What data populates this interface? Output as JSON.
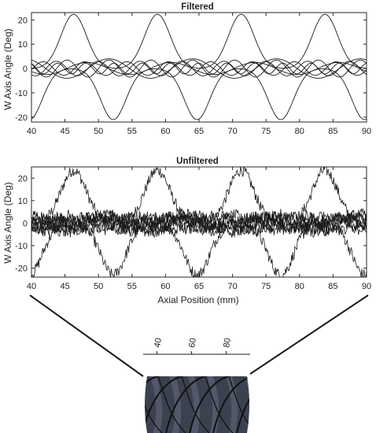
{
  "figure": {
    "colors": {
      "line": "#1a1a1a",
      "axis": "#262626",
      "tube": "#3c4150",
      "tube_stripe": "#5b6274",
      "helix": "#111111"
    },
    "scale": {
      "labels": [
        "40",
        "60",
        "80"
      ]
    }
  },
  "chart_data": [
    {
      "type": "line",
      "title": "Filtered",
      "xlabel": "",
      "ylabel": "W Axis Angle (Deg)",
      "xlim": [
        40,
        90
      ],
      "ylim": [
        -22,
        23
      ],
      "xticks": [
        40,
        45,
        50,
        55,
        60,
        65,
        70,
        75,
        80,
        85,
        90
      ],
      "yticks": [
        -20,
        -10,
        0,
        10,
        20
      ],
      "grid": false,
      "series_count": 8,
      "series": [
        {
          "pattern": "positive-peaks",
          "period": 12.5,
          "phase": 46.3,
          "amplitude": 22.3,
          "width": 1.9
        },
        {
          "pattern": "negative-valleys",
          "period": 12.5,
          "phase": 52.2,
          "amplitude": -21,
          "width": 1.9
        },
        {
          "pattern": "wave",
          "amplitude": 3.5,
          "period": 6.25,
          "phase": 0.0
        },
        {
          "pattern": "wave",
          "amplitude": 3.0,
          "period": 6.25,
          "phase": 1.6
        },
        {
          "pattern": "wave",
          "amplitude": 2.5,
          "period": 12.5,
          "phase": 2.4
        },
        {
          "pattern": "wave",
          "amplitude": 2.8,
          "period": 6.25,
          "phase": 3.6
        },
        {
          "pattern": "wave",
          "amplitude": 2.2,
          "period": 4.2,
          "phase": 5.0
        },
        {
          "pattern": "wave",
          "amplitude": 4.0,
          "period": 12.5,
          "phase": 0.8
        }
      ]
    },
    {
      "type": "line",
      "title": "Unfiltered",
      "xlabel": "Axial Position (mm)",
      "ylabel": "W Axis Angle (Deg)",
      "xlim": [
        40,
        90
      ],
      "ylim": [
        -24,
        25
      ],
      "xticks": [
        40,
        45,
        50,
        55,
        60,
        65,
        70,
        75,
        80,
        85,
        90
      ],
      "yticks": [
        -20,
        -10,
        0,
        10,
        20
      ],
      "grid": false,
      "series_count": 8,
      "noise": 2.6,
      "series": [
        {
          "pattern": "positive-peaks",
          "period": 12.5,
          "phase": 46.3,
          "amplitude": 23.5,
          "width": 1.9
        },
        {
          "pattern": "negative-valleys",
          "period": 12.5,
          "phase": 52.2,
          "amplitude": -23,
          "width": 1.9
        },
        {
          "pattern": "wave",
          "amplitude": 3.5,
          "period": 6.25,
          "phase": 0.0
        },
        {
          "pattern": "wave",
          "amplitude": 3.0,
          "period": 6.25,
          "phase": 1.6
        },
        {
          "pattern": "wave",
          "amplitude": 2.5,
          "period": 12.5,
          "phase": 2.4
        },
        {
          "pattern": "wave",
          "amplitude": 2.8,
          "period": 6.25,
          "phase": 3.6
        },
        {
          "pattern": "wave",
          "amplitude": 2.2,
          "period": 4.2,
          "phase": 5.0
        },
        {
          "pattern": "wave",
          "amplitude": 4.0,
          "period": 12.5,
          "phase": 0.8
        }
      ]
    }
  ]
}
